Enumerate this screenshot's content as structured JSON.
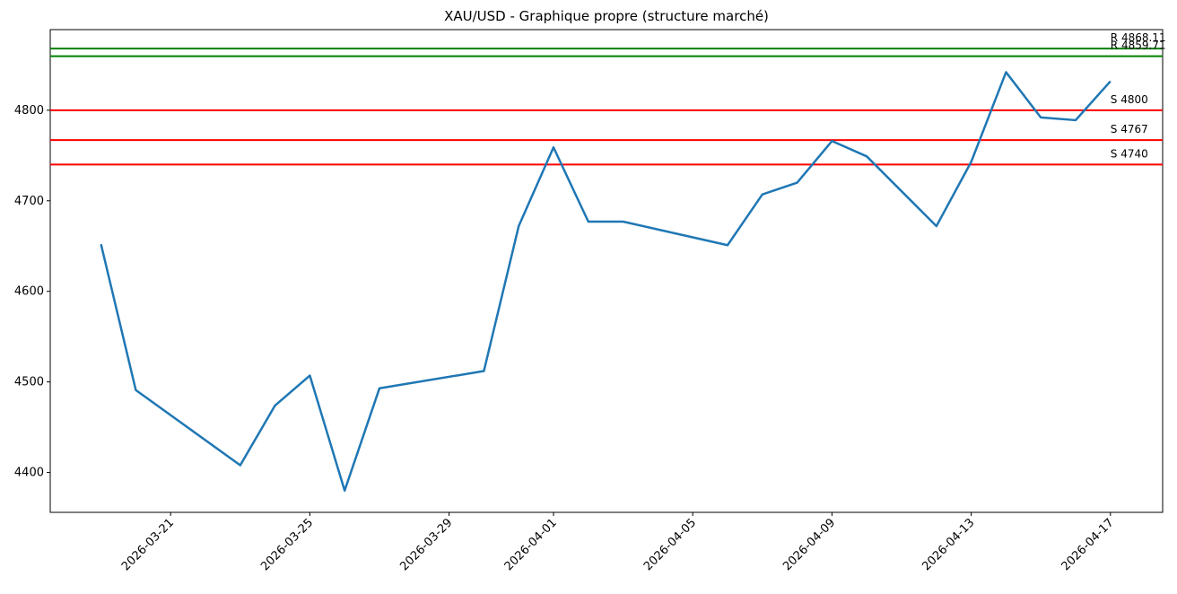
{
  "chart_data": {
    "type": "line",
    "title": "XAU/USD - Graphique propre (structure marché)",
    "x": [
      "2026-03-19",
      "2026-03-20",
      "2026-03-23",
      "2026-03-24",
      "2026-03-25",
      "2026-03-26",
      "2026-03-27",
      "2026-03-30",
      "2026-03-31",
      "2026-04-01",
      "2026-04-02",
      "2026-04-03",
      "2026-04-06",
      "2026-04-07",
      "2026-04-08",
      "2026-04-09",
      "2026-04-10",
      "2026-04-12",
      "2026-04-13",
      "2026-04-14",
      "2026-04-15",
      "2026-04-16",
      "2026-04-17"
    ],
    "series": [
      {
        "color": "#1f77b4",
        "values": [
          4652,
          4491,
          4408,
          4474,
          4507,
          4380,
          4493,
          4512,
          4672,
          4759,
          4677,
          4677,
          4651,
          4707,
          4720,
          4766,
          4749,
          4672,
          4743,
          4842,
          4792,
          4789,
          4832
        ]
      }
    ],
    "levels": [
      {
        "label": "R 4868.11",
        "value": 4868.11,
        "color": "green"
      },
      {
        "label": "R 4859.71",
        "value": 4859.71,
        "color": "green"
      },
      {
        "label": "S 4800",
        "value": 4800,
        "color": "red"
      },
      {
        "label": "S 4767",
        "value": 4767,
        "color": "red"
      },
      {
        "label": "S 4740",
        "value": 4740,
        "color": "red"
      }
    ],
    "xlim": [
      "2026-03-17T13:00",
      "2026-04-18T12:00"
    ],
    "xticks": [
      "2026-03-21",
      "2026-03-25",
      "2026-03-29",
      "2026-04-01",
      "2026-04-05",
      "2026-04-09",
      "2026-04-13",
      "2026-04-17"
    ],
    "ylim": [
      4356,
      4889
    ],
    "yticks": [
      4400,
      4500,
      4600,
      4700,
      4800
    ]
  }
}
